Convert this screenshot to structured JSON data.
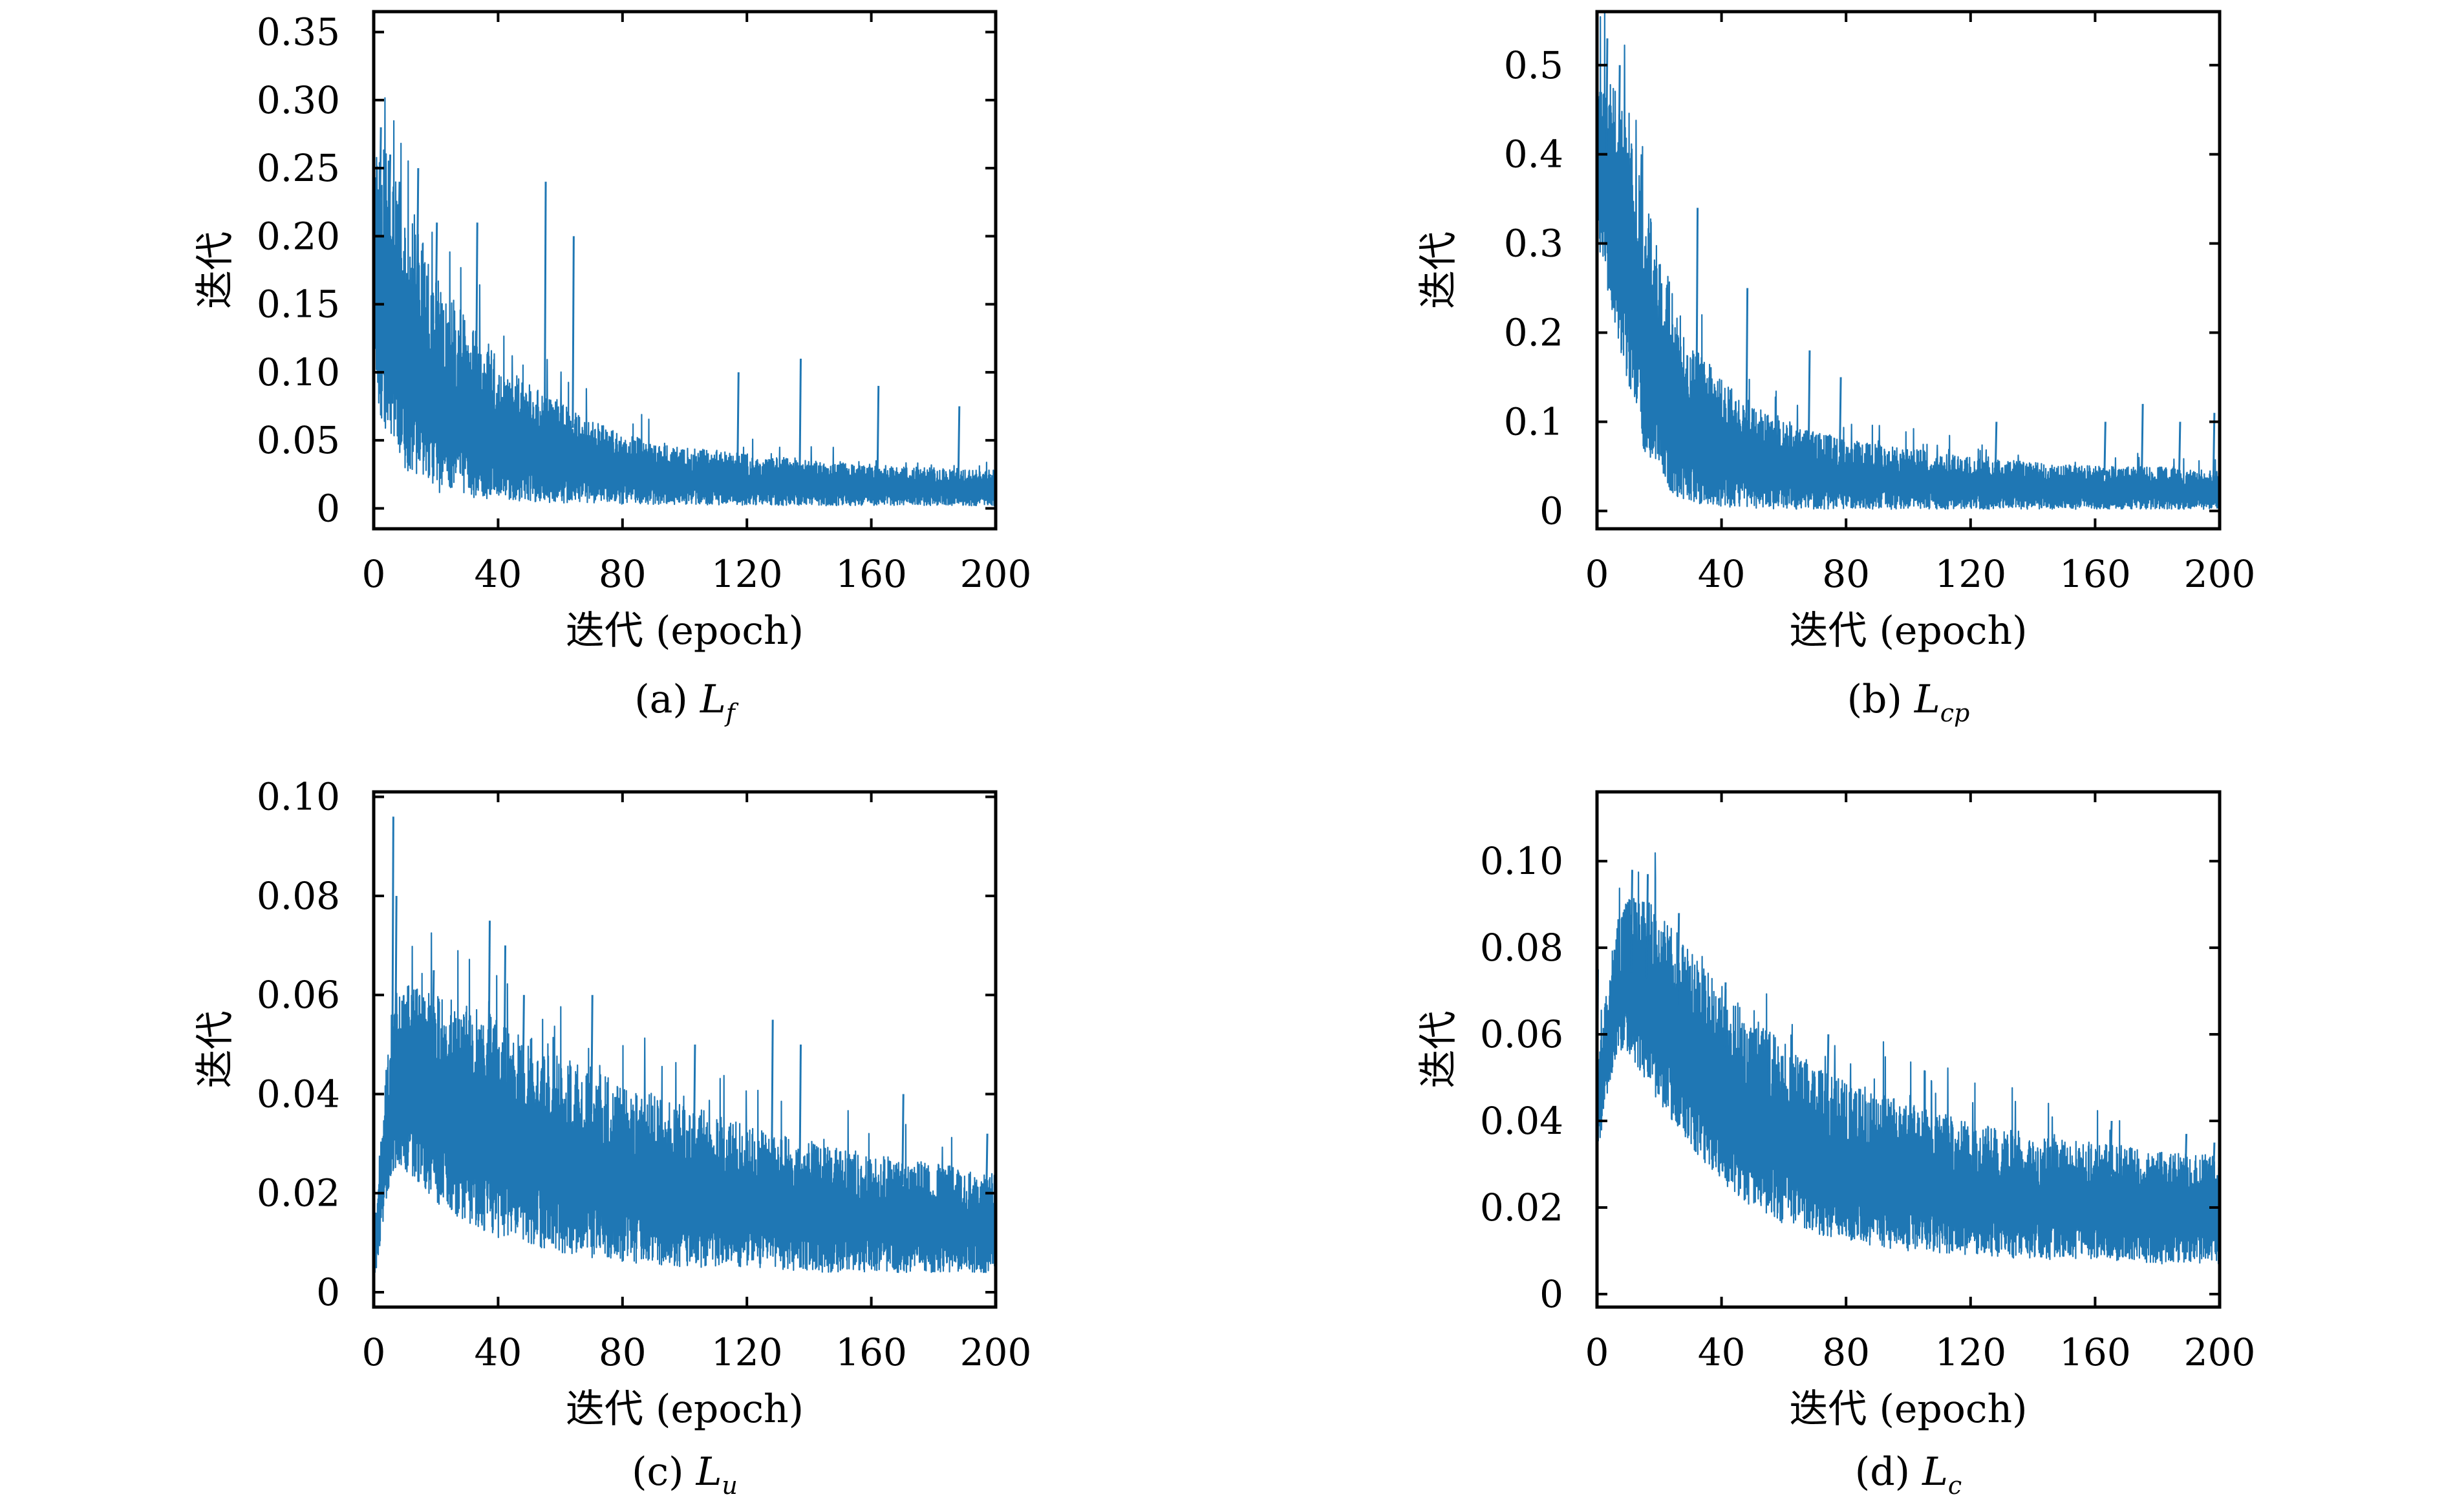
{
  "chart_data": [
    {
      "type": "line",
      "caption": "(a) L_f",
      "caption_prefix": "(a) ",
      "caption_main": "L",
      "caption_sub": "f",
      "xlabel": "迭代 (epoch)",
      "ylabel": "迭代",
      "xlim": [
        0,
        200
      ],
      "ylim": [
        -0.015,
        0.365
      ],
      "xticks": [
        0,
        40,
        80,
        120,
        160,
        200
      ],
      "xtick_labels": [
        "0",
        "40",
        "80",
        "120",
        "160",
        "200"
      ],
      "yticks": [
        0,
        0.05,
        0.1,
        0.15,
        0.2,
        0.25,
        0.3,
        0.35
      ],
      "ytick_labels": [
        "0",
        "0.05",
        "0.10",
        "0.15",
        "0.20",
        "0.25",
        "0.30",
        "0.35"
      ],
      "grid": false,
      "line_color": "#1f77b4",
      "series": [
        {
          "x": [
            0,
            5,
            10,
            15,
            20,
            30,
            40,
            50,
            60,
            70,
            80,
            90,
            100,
            120,
            140,
            160,
            180,
            200
          ],
          "y_upper": [
            0.27,
            0.26,
            0.23,
            0.2,
            0.17,
            0.14,
            0.11,
            0.09,
            0.08,
            0.065,
            0.055,
            0.05,
            0.045,
            0.04,
            0.035,
            0.032,
            0.03,
            0.028
          ],
          "y_lower": [
            0.08,
            0.05,
            0.03,
            0.018,
            0.012,
            0.008,
            0.006,
            0.005,
            0.004,
            0.004,
            0.003,
            0.003,
            0.003,
            0.002,
            0.002,
            0.002,
            0.002,
            0.002
          ],
          "spikes": [
            [
              2,
              0.28
            ],
            [
              5,
              0.26
            ],
            [
              8,
              0.24
            ],
            [
              14,
              0.25
            ],
            [
              20,
              0.21
            ],
            [
              33,
              0.21
            ],
            [
              55,
              0.24
            ],
            [
              64,
              0.2
            ],
            [
              117,
              0.1
            ],
            [
              137,
              0.11
            ],
            [
              162,
              0.09
            ],
            [
              188,
              0.075
            ],
            [
              198,
              0.025
            ]
          ]
        }
      ]
    },
    {
      "type": "line",
      "caption": "(b) L_cp",
      "caption_prefix": "(b) ",
      "caption_main": "L",
      "caption_sub": "cp",
      "xlabel": "迭代 (epoch)",
      "ylabel": "迭代",
      "xlim": [
        0,
        200
      ],
      "ylim": [
        -0.02,
        0.56
      ],
      "xticks": [
        0,
        40,
        80,
        120,
        160,
        200
      ],
      "xtick_labels": [
        "0",
        "40",
        "80",
        "120",
        "160",
        "200"
      ],
      "yticks": [
        0,
        0.1,
        0.2,
        0.3,
        0.4,
        0.5
      ],
      "ytick_labels": [
        "0",
        "0.1",
        "0.2",
        "0.3",
        "0.4",
        "0.5"
      ],
      "grid": false,
      "line_color": "#1f77b4",
      "series": [
        {
          "x": [
            0,
            5,
            10,
            15,
            20,
            25,
            30,
            40,
            50,
            60,
            80,
            100,
            120,
            140,
            160,
            180,
            200
          ],
          "y_upper": [
            0.52,
            0.48,
            0.43,
            0.36,
            0.3,
            0.24,
            0.19,
            0.15,
            0.12,
            0.1,
            0.08,
            0.07,
            0.06,
            0.055,
            0.05,
            0.05,
            0.045
          ],
          "y_lower": [
            0.3,
            0.22,
            0.14,
            0.07,
            0.03,
            0.015,
            0.008,
            0.004,
            0.003,
            0.002,
            0.002,
            0.002,
            0.002,
            0.002,
            0.002,
            0.002,
            0.002
          ],
          "spikes": [
            [
              3,
              0.53
            ],
            [
              7,
              0.5
            ],
            [
              14,
              0.4
            ],
            [
              32,
              0.34
            ],
            [
              48,
              0.25
            ],
            [
              68,
              0.18
            ],
            [
              78,
              0.15
            ],
            [
              128,
              0.1
            ],
            [
              163,
              0.1
            ],
            [
              175,
              0.12
            ],
            [
              187,
              0.1
            ],
            [
              198,
              0.11
            ]
          ]
        }
      ]
    },
    {
      "type": "line",
      "caption": "(c) L_u",
      "caption_prefix": "(c) ",
      "caption_main": "L",
      "caption_sub": "u",
      "xlabel": "迭代 (epoch)",
      "ylabel": "迭代",
      "xlim": [
        0,
        200
      ],
      "ylim": [
        -0.003,
        0.101
      ],
      "xticks": [
        0,
        40,
        80,
        120,
        160,
        200
      ],
      "xtick_labels": [
        "0",
        "40",
        "80",
        "120",
        "160",
        "200"
      ],
      "yticks": [
        0,
        0.02,
        0.04,
        0.06,
        0.08,
        0.1
      ],
      "ytick_labels": [
        "0",
        "0.02",
        "0.04",
        "0.06",
        "0.08",
        "0.10"
      ],
      "grid": false,
      "line_color": "#1f77b4",
      "series": [
        {
          "x": [
            0,
            2,
            4,
            6,
            8,
            10,
            15,
            20,
            30,
            40,
            50,
            60,
            70,
            80,
            100,
            120,
            140,
            160,
            180,
            200
          ],
          "y_upper": [
            0.01,
            0.03,
            0.045,
            0.058,
            0.062,
            0.063,
            0.062,
            0.06,
            0.058,
            0.056,
            0.052,
            0.048,
            0.045,
            0.042,
            0.038,
            0.034,
            0.03,
            0.028,
            0.026,
            0.024
          ],
          "y_lower": [
            0.002,
            0.008,
            0.018,
            0.024,
            0.026,
            0.024,
            0.022,
            0.018,
            0.014,
            0.011,
            0.009,
            0.008,
            0.007,
            0.006,
            0.005,
            0.005,
            0.004,
            0.004,
            0.004,
            0.004
          ],
          "spikes": [
            [
              6,
              0.096
            ],
            [
              7,
              0.08
            ],
            [
              19,
              0.065
            ],
            [
              37,
              0.075
            ],
            [
              42,
              0.07
            ],
            [
              48,
              0.06
            ],
            [
              70,
              0.06
            ],
            [
              103,
              0.05
            ],
            [
              128,
              0.055
            ],
            [
              137,
              0.05
            ],
            [
              170,
              0.04
            ],
            [
              197,
              0.032
            ]
          ]
        }
      ]
    },
    {
      "type": "line",
      "caption": "(d) L_c",
      "caption_prefix": "(d) ",
      "caption_main": "L",
      "caption_sub": "c",
      "xlabel": "迭代 (epoch)",
      "ylabel": "迭代",
      "xlim": [
        0,
        200
      ],
      "ylim": [
        -0.003,
        0.116
      ],
      "xticks": [
        0,
        40,
        80,
        120,
        160,
        200
      ],
      "xtick_labels": [
        "0",
        "40",
        "80",
        "120",
        "160",
        "200"
      ],
      "yticks": [
        0,
        0.02,
        0.04,
        0.06,
        0.08,
        0.1
      ],
      "ytick_labels": [
        "0",
        "0.02",
        "0.04",
        "0.06",
        "0.08",
        "0.10"
      ],
      "grid": false,
      "line_color": "#1f77b4",
      "series": [
        {
          "x": [
            0,
            3,
            6,
            10,
            15,
            20,
            30,
            40,
            50,
            60,
            70,
            80,
            100,
            120,
            140,
            160,
            180,
            200
          ],
          "y_upper": [
            0.05,
            0.07,
            0.085,
            0.093,
            0.092,
            0.088,
            0.08,
            0.072,
            0.064,
            0.058,
            0.053,
            0.049,
            0.044,
            0.04,
            0.037,
            0.035,
            0.033,
            0.032
          ],
          "y_lower": [
            0.03,
            0.045,
            0.055,
            0.056,
            0.05,
            0.044,
            0.034,
            0.026,
            0.02,
            0.016,
            0.014,
            0.012,
            0.01,
            0.009,
            0.008,
            0.008,
            0.007,
            0.007
          ],
          "spikes": [
            [
              0,
              0.075
            ],
            [
              11,
              0.098
            ],
            [
              16,
              0.097
            ],
            [
              26,
              0.088
            ],
            [
              41,
              0.072
            ],
            [
              55,
              0.06
            ],
            [
              74,
              0.06
            ],
            [
              92,
              0.045
            ],
            [
              165,
              0.04
            ],
            [
              189,
              0.037
            ],
            [
              198,
              0.035
            ]
          ]
        }
      ]
    }
  ]
}
